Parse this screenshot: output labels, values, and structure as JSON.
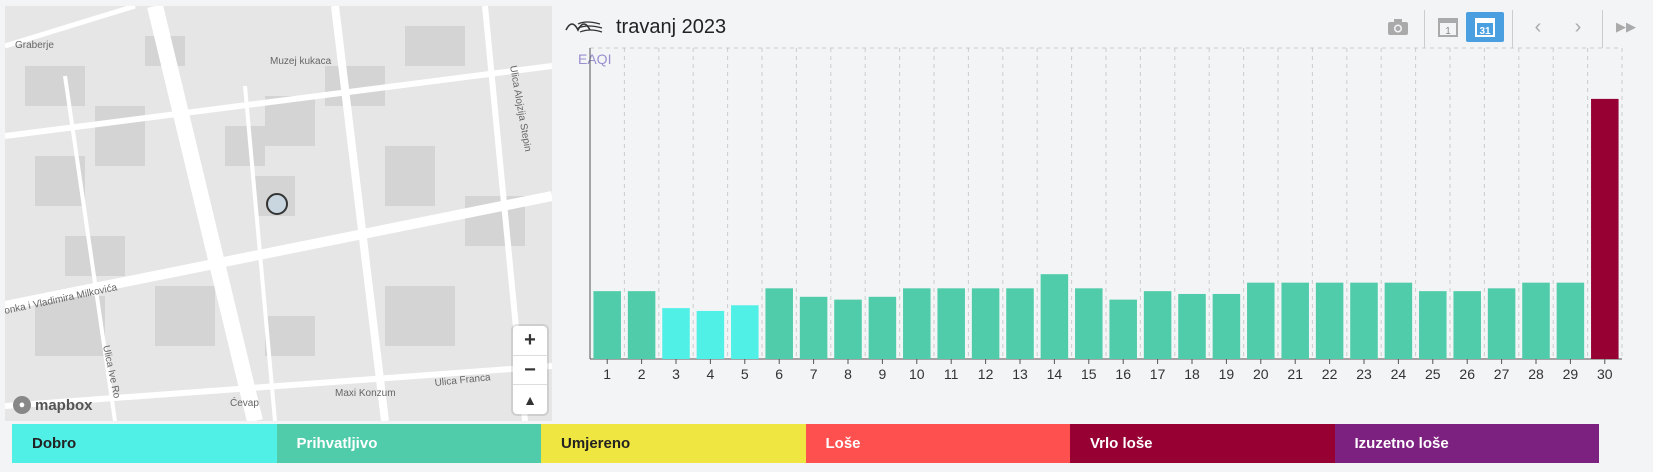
{
  "header": {
    "title": "travanj 2023",
    "logo_icon": "air-wave-logo-icon",
    "buttons": [
      {
        "name": "camera-button",
        "icon": "camera-icon"
      },
      {
        "name": "day-view-button",
        "icon": "calendar-day-icon",
        "label": "1"
      },
      {
        "name": "month-view-button",
        "icon": "calendar-month-icon",
        "label": "31",
        "active": true
      },
      {
        "name": "prev-button",
        "icon": "chevron-left-icon"
      },
      {
        "name": "next-button",
        "icon": "chevron-right-icon"
      },
      {
        "name": "fast-forward-button",
        "icon": "fast-forward-icon"
      }
    ]
  },
  "map": {
    "labels": {
      "graberje": "Graberje",
      "muzej": "Muzej kukaca",
      "ulica_aloizija": "Ulica Alojzija Stepin",
      "milkovica": "onka i Vladimira Milkovića",
      "ulica_ivo": "Ulica Ive Ro",
      "maxi": "Maxi Konzum",
      "ulica_franca": "Ulica Franca",
      "cevap": "Ćevap"
    },
    "attribution": "mapbox",
    "zoom_in": "+",
    "zoom_out": "−",
    "compass": "▲"
  },
  "chart_data": {
    "type": "bar",
    "ylabel": "EAQI",
    "categories": [
      "1",
      "2",
      "3",
      "4",
      "5",
      "6",
      "7",
      "8",
      "9",
      "10",
      "11",
      "12",
      "13",
      "14",
      "15",
      "16",
      "17",
      "18",
      "19",
      "20",
      "21",
      "22",
      "23",
      "24",
      "25",
      "26",
      "27",
      "28",
      "29",
      "30"
    ],
    "values": [
      24,
      24,
      18,
      17,
      19,
      25,
      22,
      21,
      22,
      25,
      25,
      25,
      25,
      30,
      25,
      21,
      24,
      23,
      23,
      27,
      27,
      27,
      27,
      27,
      24,
      24,
      25,
      27,
      27,
      92
    ],
    "levels": [
      "prihvatljivo",
      "prihvatljivo",
      "dobro",
      "dobro",
      "dobro",
      "prihvatljivo",
      "prihvatljivo",
      "prihvatljivo",
      "prihvatljivo",
      "prihvatljivo",
      "prihvatljivo",
      "prihvatljivo",
      "prihvatljivo",
      "prihvatljivo",
      "prihvatljivo",
      "prihvatljivo",
      "prihvatljivo",
      "prihvatljivo",
      "prihvatljivo",
      "prihvatljivo",
      "prihvatljivo",
      "prihvatljivo",
      "prihvatljivo",
      "prihvatljivo",
      "prihvatljivo",
      "prihvatljivo",
      "prihvatljivo",
      "prihvatljivo",
      "prihvatljivo",
      "vrlo-lose"
    ],
    "ylim": [
      0,
      110
    ],
    "grid": "vertical-dashed"
  },
  "legend": [
    {
      "key": "dobro",
      "label": "Dobro",
      "color": "#50f0e6",
      "text_color": "#222222"
    },
    {
      "key": "prihvatljivo",
      "label": "Prihvatljivo",
      "color": "#50ccaa",
      "text_color": "#ffffff"
    },
    {
      "key": "umjereno",
      "label": "Umjereno",
      "color": "#f0e641",
      "text_color": "#222222"
    },
    {
      "key": "lose",
      "label": "Loše",
      "color": "#ff5050",
      "text_color": "#ffffff"
    },
    {
      "key": "vrlo-lose",
      "label": "Vrlo loše",
      "color": "#960032",
      "text_color": "#ffffff"
    },
    {
      "key": "izuzetno-lose",
      "label": "Izuzetno loše",
      "color": "#7d2181",
      "text_color": "#ffffff"
    }
  ]
}
